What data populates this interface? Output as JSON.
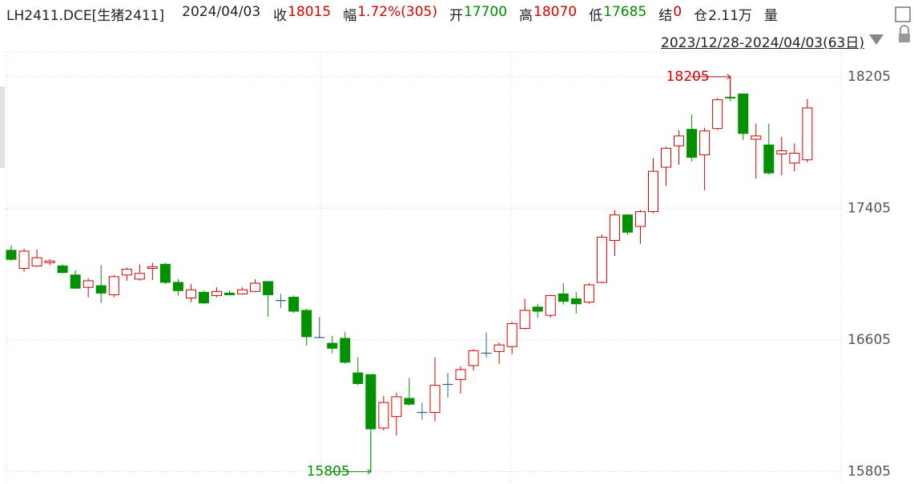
{
  "header": {
    "symbol": "LH2411.DCE[生猪2411]",
    "date": "2024/04/03",
    "items": [
      {
        "label": "收",
        "value": "18015",
        "color": "#d40000"
      },
      {
        "label": "幅",
        "value": "1.72%(305)",
        "color": "#d40000"
      },
      {
        "label": "开",
        "value": "17700",
        "color": "#008a00"
      },
      {
        "label": "高",
        "value": "18070",
        "color": "#d40000"
      },
      {
        "label": "低",
        "value": "17685",
        "color": "#008a00"
      },
      {
        "label": "结",
        "value": "0",
        "color": "#d40000"
      },
      {
        "label": "仓",
        "value": "2.11万",
        "color": "#222222"
      }
    ],
    "last_label": "量",
    "range": "2023/12/28-2024/04/03(63日)"
  },
  "chart_data": {
    "type": "candlestick",
    "open": [
      17150,
      17040,
      17055,
      17075,
      17055,
      17000,
      16925,
      16935,
      16880,
      17000,
      16975,
      17040,
      17065,
      16955,
      16860,
      16895,
      16875,
      16890,
      16885,
      16900,
      16960,
      16845,
      16865,
      16785,
      16620,
      16585,
      16615,
      16405,
      16395,
      16070,
      16140,
      16250,
      16165,
      16165,
      16335,
      16365,
      16450,
      16525,
      16535,
      16565,
      16675,
      16805,
      16755,
      16885,
      16855,
      16835,
      16955,
      17210,
      17365,
      17295,
      17385,
      17655,
      17785,
      17885,
      17730,
      17890,
      18080,
      18100,
      17825,
      17790,
      17735,
      17680,
      17700
    ],
    "high": [
      17180,
      17160,
      17155,
      17095,
      17065,
      17030,
      16980,
      17060,
      17000,
      17045,
      17065,
      17075,
      17075,
      16975,
      16945,
      16905,
      16925,
      16905,
      16925,
      16975,
      16960,
      16885,
      16875,
      16795,
      16745,
      16630,
      16655,
      16500,
      16395,
      16265,
      16285,
      16375,
      16225,
      16500,
      16405,
      16445,
      16550,
      16650,
      16590,
      16715,
      16855,
      16825,
      16880,
      16950,
      16895,
      16950,
      17245,
      17395,
      17370,
      17395,
      17710,
      17780,
      17880,
      17975,
      17895,
      18075,
      18205,
      18100,
      17920,
      17920,
      17840,
      17800,
      18070
    ],
    "low": [
      17085,
      17020,
      17050,
      17060,
      17010,
      16915,
      16865,
      16830,
      16865,
      16965,
      16965,
      16970,
      16945,
      16875,
      16835,
      16825,
      16865,
      16875,
      16880,
      16895,
      16745,
      16800,
      16770,
      16570,
      16615,
      16525,
      16460,
      16330,
      15805,
      16055,
      16025,
      16205,
      16120,
      16110,
      16255,
      16280,
      16420,
      16500,
      16460,
      16520,
      16670,
      16740,
      16740,
      16820,
      16765,
      16825,
      16950,
      17115,
      17245,
      17190,
      17375,
      17540,
      17670,
      17690,
      17515,
      17880,
      18055,
      17820,
      17585,
      17610,
      17605,
      17630,
      17685
    ],
    "close": [
      17095,
      17145,
      17105,
      17085,
      17015,
      16920,
      16965,
      16890,
      16990,
      17035,
      17010,
      17050,
      16955,
      16905,
      16910,
      16830,
      16900,
      16880,
      16910,
      16950,
      16880,
      16845,
      16780,
      16625,
      16620,
      16555,
      16470,
      16340,
      16065,
      16225,
      16260,
      16215,
      16165,
      16330,
      16335,
      16425,
      16540,
      16525,
      16575,
      16705,
      16785,
      16780,
      16875,
      16840,
      16825,
      16940,
      17230,
      17365,
      17260,
      17385,
      17630,
      17770,
      17845,
      17715,
      17875,
      18065,
      18075,
      17860,
      17845,
      17620,
      17755,
      17740,
      18015
    ],
    "up_color": "#d40000",
    "down_color": "#009100",
    "flat_color": "#2b5f8a",
    "ylim": [
      15730,
      18355
    ],
    "yticks": [
      15805,
      16605,
      17405,
      18205
    ],
    "grid": true,
    "max_label": 18205,
    "min_label": 15805
  }
}
